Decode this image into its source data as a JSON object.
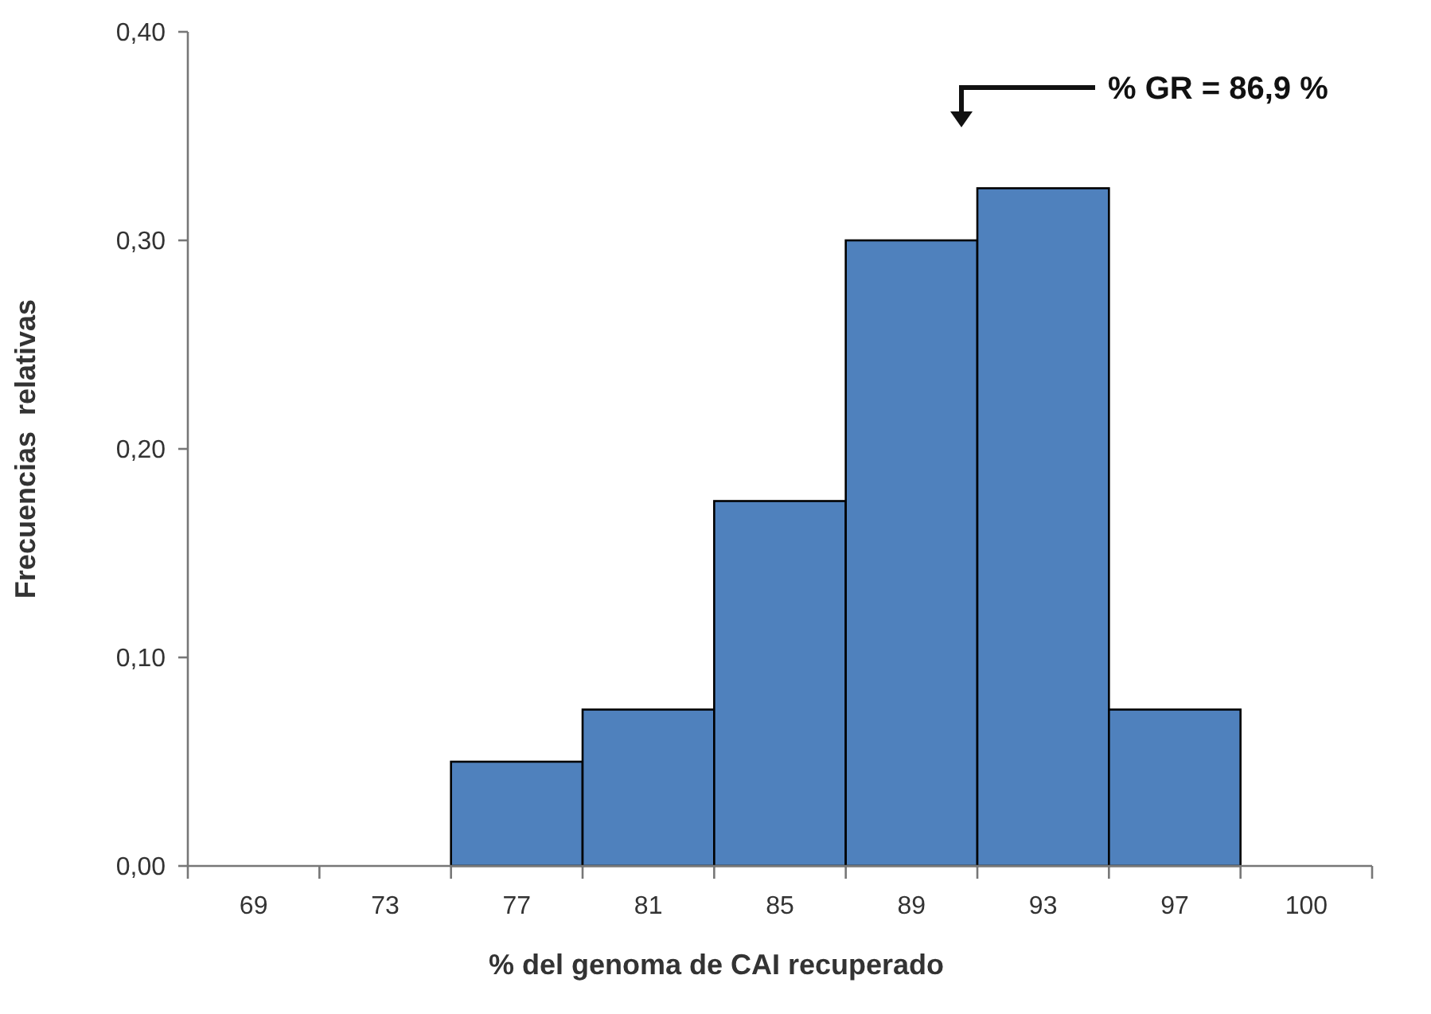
{
  "chart_data": {
    "type": "bar",
    "xlabel": "% del genoma de CAI recuperado",
    "ylabel": "Frecuencias  relativas",
    "categories": [
      "69",
      "73",
      "77",
      "81",
      "85",
      "89",
      "93",
      "97",
      "100"
    ],
    "values": [
      0,
      0,
      0.05,
      0.075,
      0.175,
      0.3,
      0.325,
      0.075,
      0
    ],
    "color": "#4f81bd",
    "ylim": [
      0,
      0.4
    ],
    "yticks": [
      {
        "value": 0,
        "label": "0,00"
      },
      {
        "value": 0.1,
        "label": "0,10"
      },
      {
        "value": 0.2,
        "label": "0,20"
      },
      {
        "value": 0.3,
        "label": "0,30"
      },
      {
        "value": 0.4,
        "label": "0,40"
      }
    ],
    "grid": false,
    "annotations": [
      "% GR = 86,9 %"
    ]
  }
}
